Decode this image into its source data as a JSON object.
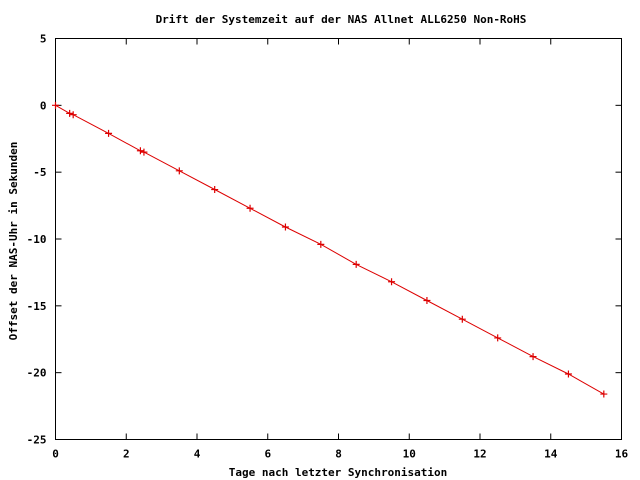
{
  "chart_data": {
    "type": "line",
    "title": "Drift der Systemzeit auf der NAS Allnet ALL6250 Non-RoHS",
    "xlabel": "Tage nach letzter Synchronisation",
    "ylabel": "Offset der NAS-Uhr in Sekunden",
    "xlim": [
      0,
      16
    ],
    "ylim": [
      -25,
      5
    ],
    "x_ticks": [
      "0",
      "2",
      "4",
      "6",
      "8",
      "10",
      "12",
      "14",
      "16"
    ],
    "y_ticks": [
      "5",
      "0",
      "-5",
      "-10",
      "-15",
      "-20",
      "-25"
    ],
    "grid": false,
    "color": "#dd0000",
    "series": [
      {
        "x": [
          0.0,
          0.4,
          0.5,
          1.5,
          2.4,
          2.5,
          3.5,
          4.5,
          5.5,
          6.5,
          7.5,
          8.5,
          9.5,
          10.5,
          11.5,
          12.5,
          13.5,
          14.5,
          15.5
        ],
        "y": [
          0.0,
          -0.6,
          -0.7,
          -2.1,
          -3.4,
          -3.5,
          -4.9,
          -6.3,
          -7.7,
          -9.1,
          -10.4,
          -11.9,
          -13.2,
          -14.6,
          -16.0,
          -17.4,
          -18.8,
          -20.1,
          -21.6
        ]
      }
    ]
  }
}
